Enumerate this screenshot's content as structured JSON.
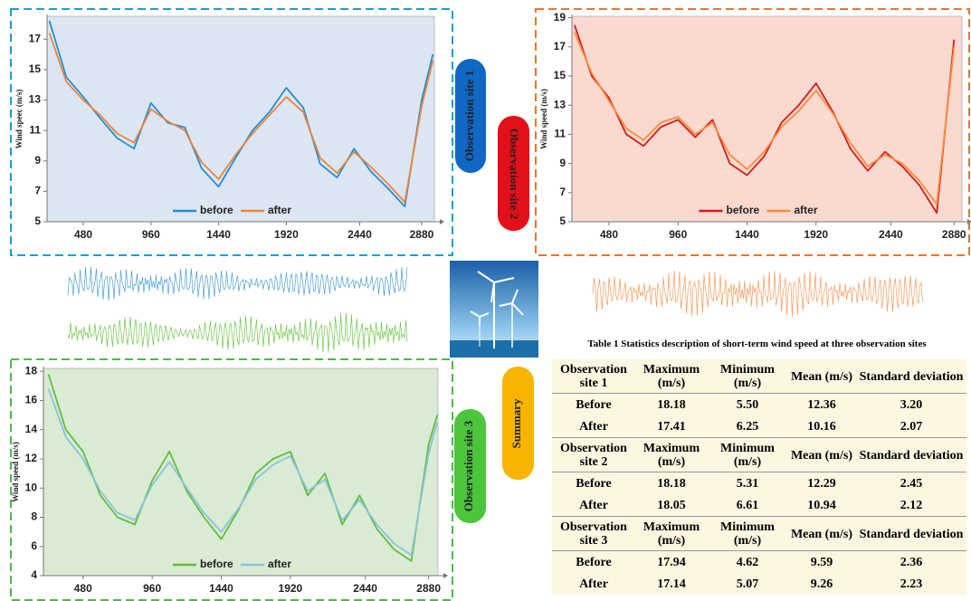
{
  "chart_data": [
    {
      "type": "line",
      "y_label": "Wind speec (m/s)",
      "background": "#dce6f2",
      "legend": "lower center",
      "x": [
        240,
        360,
        480,
        600,
        720,
        840,
        960,
        1080,
        1200,
        1320,
        1440,
        1560,
        1680,
        1800,
        1920,
        2040,
        2160,
        2280,
        2400,
        2520,
        2640,
        2760,
        2880,
        2960
      ],
      "series": [
        {
          "name": "before",
          "color": "#1f8fd6",
          "values": [
            18.2,
            14.5,
            13.2,
            11.8,
            10.5,
            9.8,
            12.8,
            11.5,
            11.2,
            8.5,
            7.3,
            9.2,
            11.0,
            12.2,
            13.8,
            12.5,
            8.8,
            7.9,
            9.8,
            8.3,
            7.2,
            6.0,
            13.0,
            16.0
          ]
        },
        {
          "name": "after",
          "color": "#f0823a",
          "values": [
            17.4,
            14.2,
            13.0,
            12.0,
            10.8,
            10.2,
            12.4,
            11.6,
            11.0,
            8.9,
            7.8,
            9.4,
            10.8,
            12.0,
            13.2,
            12.2,
            9.2,
            8.2,
            9.6,
            8.6,
            7.5,
            6.3,
            12.6,
            15.6
          ]
        }
      ],
      "xlim": [
        223,
        2970
      ],
      "xticks": [
        480,
        960,
        1440,
        1920,
        2440,
        2880
      ],
      "ylim": [
        5,
        18.5
      ],
      "yticks": [
        5,
        7,
        9,
        11,
        13,
        15,
        17
      ]
    },
    {
      "type": "line",
      "y_label": "Wind speed (m/s)",
      "background": "#fad9d0",
      "legend": "lower center",
      "x": [
        240,
        360,
        480,
        600,
        720,
        840,
        960,
        1080,
        1200,
        1320,
        1440,
        1560,
        1680,
        1800,
        1920,
        2040,
        2160,
        2280,
        2400,
        2520,
        2640,
        2760,
        2880
      ],
      "series": [
        {
          "name": "before",
          "color": "#d7191c",
          "values": [
            18.5,
            15.0,
            13.5,
            11.0,
            10.2,
            11.5,
            12.0,
            10.8,
            12.0,
            9.0,
            8.2,
            9.5,
            11.8,
            13.0,
            14.5,
            12.5,
            10.0,
            8.5,
            9.8,
            8.8,
            7.5,
            5.6,
            17.5
          ]
        },
        {
          "name": "after",
          "color": "#ff8c33",
          "values": [
            18.0,
            15.2,
            13.3,
            11.4,
            10.6,
            11.8,
            12.2,
            11.0,
            11.8,
            9.6,
            8.6,
            9.8,
            11.5,
            12.6,
            14.0,
            12.4,
            10.4,
            8.8,
            9.6,
            9.0,
            7.8,
            6.2,
            17.0
          ]
        }
      ],
      "xlim": [
        222,
        2935
      ],
      "xticks": [
        480,
        960,
        1440,
        1920,
        2440,
        2880
      ],
      "ylim": [
        5,
        19.1
      ],
      "yticks": [
        5,
        7,
        9,
        11,
        13,
        15,
        17,
        19
      ]
    },
    {
      "type": "line",
      "y_label": "Wind speed (m/s)",
      "background": "#d9ebd3",
      "legend": "lower center",
      "x": [
        240,
        360,
        480,
        600,
        720,
        840,
        960,
        1080,
        1200,
        1320,
        1440,
        1560,
        1680,
        1800,
        1920,
        2040,
        2160,
        2280,
        2400,
        2520,
        2640,
        2760,
        2880,
        2940
      ],
      "series": [
        {
          "name": "before",
          "color": "#5fbf3a",
          "values": [
            17.8,
            14.0,
            12.5,
            9.5,
            8.0,
            7.5,
            10.5,
            12.5,
            9.8,
            8.0,
            6.5,
            8.5,
            11.0,
            12.0,
            12.5,
            9.5,
            11.0,
            7.5,
            9.5,
            7.2,
            5.8,
            5.0,
            13.0,
            15.0
          ]
        },
        {
          "name": "after",
          "color": "#8cc0e0",
          "values": [
            16.8,
            13.5,
            12.0,
            9.8,
            8.3,
            7.8,
            10.2,
            11.8,
            10.0,
            8.3,
            7.0,
            8.6,
            10.6,
            11.6,
            12.2,
            9.8,
            10.6,
            7.8,
            9.2,
            7.5,
            6.2,
            5.4,
            12.4,
            14.5
          ]
        }
      ],
      "xlim": [
        205,
        2945
      ],
      "xticks": [
        480,
        960,
        1440,
        1920,
        2440,
        2880
      ],
      "ylim": [
        4,
        18.2
      ],
      "yticks": [
        4,
        6,
        8,
        10,
        12,
        14,
        16,
        18
      ]
    }
  ],
  "site_labels": [
    "Observation site 1",
    "Observation site 2",
    "Observation site 3"
  ],
  "summary_label": "Summary",
  "table": {
    "title": "Table 1 Statistics description of short-term wind speed at three observation sites",
    "groups": [
      {
        "header": [
          "Observation site 1",
          "Maximum (m/s)",
          "Minimum (m/s)",
          "Mean (m/s)",
          "Standard deviation"
        ],
        "rows": [
          [
            "Before",
            "18.18",
            "5.50",
            "12.36",
            "3.20"
          ],
          [
            "After",
            "17.41",
            "6.25",
            "10.16",
            "2.07"
          ]
        ]
      },
      {
        "header": [
          "Observation site 2",
          "Maximum (m/s)",
          "Minimum (m/s)",
          "Mean (m/s)",
          "Standard deviation"
        ],
        "rows": [
          [
            "Before",
            "18.18",
            "5.31",
            "12.29",
            "2.45"
          ],
          [
            "After",
            "18.05",
            "6.61",
            "10.94",
            "2.12"
          ]
        ]
      },
      {
        "header": [
          "Observation site 3",
          "Maximum (m/s)",
          "Minimum (m/s)",
          "Mean (m/s)",
          "Standard deviation"
        ],
        "rows": [
          [
            "Before",
            "17.94",
            "4.62",
            "9.59",
            "2.36"
          ],
          [
            "After",
            "17.14",
            "5.07",
            "9.26",
            "2.23"
          ]
        ]
      }
    ]
  }
}
